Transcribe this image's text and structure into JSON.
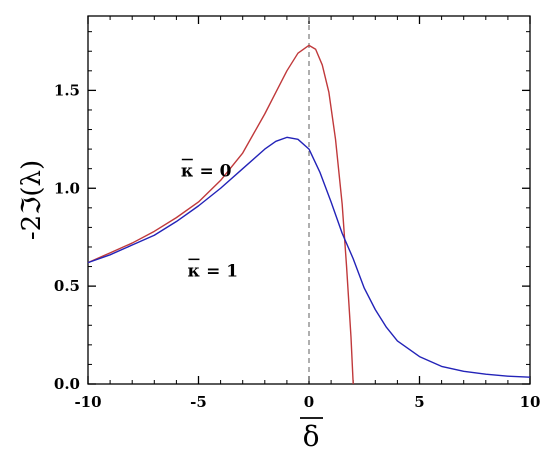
{
  "chart_data": {
    "type": "line",
    "xlabel": "δ",
    "ylabel": "-2ℑ(λ)",
    "xlim": [
      -10,
      10
    ],
    "ylim": [
      0,
      1.88
    ],
    "x_ticks": [
      -10,
      -5,
      0,
      5,
      10
    ],
    "x_tick_labels": [
      "-10",
      "-5",
      "0",
      "5",
      "10"
    ],
    "y_ticks": [
      0,
      0.5,
      1.0,
      1.5
    ],
    "y_tick_labels": [
      "0.0",
      "0.5",
      "1.0",
      "1.5"
    ],
    "grid": false,
    "reference_line": {
      "x": 0,
      "style": "dashed",
      "color": "#7a7a7a"
    },
    "annotations": [
      {
        "text": "κ = 0",
        "x": -5.8,
        "y": 1.06
      },
      {
        "text": "κ = 1",
        "x": -5.5,
        "y": 0.55
      }
    ],
    "series": [
      {
        "color": "#c0393b",
        "x": [
          -10,
          -9,
          -8,
          -7,
          -6,
          -5,
          -4,
          -3,
          -2,
          -1.5,
          -1,
          -0.5,
          0,
          0.3,
          0.6,
          0.9,
          1.2,
          1.5,
          1.7,
          1.8,
          1.9,
          1.95,
          2.0
        ],
        "y": [
          0.62,
          0.67,
          0.72,
          0.78,
          0.85,
          0.93,
          1.04,
          1.18,
          1.38,
          1.49,
          1.6,
          1.69,
          1.73,
          1.71,
          1.63,
          1.49,
          1.25,
          0.92,
          0.6,
          0.42,
          0.24,
          0.12,
          0.0
        ]
      },
      {
        "color": "#2323b8",
        "x": [
          -10,
          -9,
          -8,
          -7,
          -6,
          -5,
          -4,
          -3,
          -2,
          -1.5,
          -1,
          -0.5,
          0,
          0.5,
          1,
          1.5,
          2,
          2.5,
          3,
          3.5,
          4,
          5,
          6,
          7,
          8,
          9,
          10
        ],
        "y": [
          0.62,
          0.66,
          0.71,
          0.76,
          0.83,
          0.91,
          1.0,
          1.1,
          1.2,
          1.24,
          1.26,
          1.25,
          1.2,
          1.08,
          0.93,
          0.77,
          0.64,
          0.49,
          0.38,
          0.29,
          0.22,
          0.14,
          0.09,
          0.065,
          0.05,
          0.04,
          0.035
        ]
      }
    ]
  }
}
